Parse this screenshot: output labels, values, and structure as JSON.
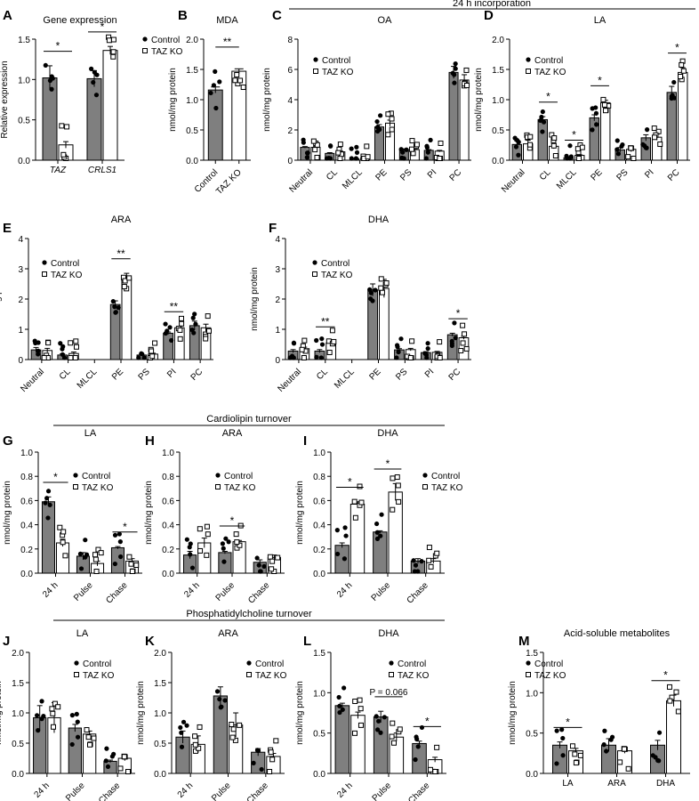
{
  "colors": {
    "control_fill": "#7f7f7f",
    "ko_fill": "#ffffff",
    "axis": "#000000"
  },
  "legend": {
    "control": "Control",
    "ko": "TAZ KO"
  },
  "section_titles": {
    "incorporation": "24 h incorporation",
    "cardiolipin": "Cardiolipin turnover",
    "phosphatidylcholine": "Phosphatidylcholine turnover"
  },
  "chart_data": [
    {
      "id": "A",
      "type": "bar",
      "title": "Gene expression",
      "ylabel": "Relative expression",
      "categories": [
        "TAZ",
        "CRLS1"
      ],
      "italic_categories": true,
      "ylim": [
        0,
        1.5
      ],
      "yticks": [
        "0.0",
        "0.5",
        "1.0",
        "1.5"
      ],
      "yticks_values": [
        0,
        0.5,
        1.0,
        1.5
      ],
      "series": [
        {
          "name": "Control",
          "values": [
            1.02,
            1.01
          ],
          "errors": [
            0.15,
            0.1
          ]
        },
        {
          "name": "TAZ KO",
          "values": [
            0.19,
            1.36
          ],
          "errors": [
            0.04,
            0.05
          ]
        }
      ],
      "significance": [
        {
          "category": "TAZ",
          "label": "*"
        },
        {
          "category": "CRLS1",
          "label": "*"
        }
      ],
      "legend": true
    },
    {
      "id": "B",
      "type": "bar",
      "title": "MDA",
      "ylabel": "nmol/mg protein",
      "categories": [
        "Control",
        "TAZ KO"
      ],
      "ylim": [
        0,
        2
      ],
      "yticks": [
        "0.0",
        "0.5",
        "1.0",
        "1.5",
        "2.0"
      ],
      "yticks_values": [
        0,
        0.5,
        1.0,
        1.5,
        2.0
      ],
      "single_series": true,
      "values": [
        1.16,
        1.47
      ],
      "errors": [
        0.05,
        0.04
      ],
      "significance": [
        {
          "label": "**"
        }
      ]
    },
    {
      "id": "C",
      "type": "bar",
      "title": "OA",
      "ylabel": "nmol/mg protein",
      "categories": [
        "Neutral",
        "CL",
        "MLCL",
        "PE",
        "PS",
        "PI",
        "PC"
      ],
      "ylim": [
        0,
        8
      ],
      "yticks": [
        "0",
        "2",
        "4",
        "6",
        "8"
      ],
      "yticks_values": [
        0,
        2,
        4,
        6,
        8
      ],
      "series": [
        {
          "name": "Control",
          "values": [
            0.85,
            0.45,
            0.1,
            2.2,
            0.7,
            0.65,
            5.8
          ],
          "errors": [
            0.05,
            0.05,
            0.02,
            0.15,
            0.05,
            0.05,
            0.4
          ]
        },
        {
          "name": "TAZ KO",
          "values": [
            0.85,
            0.55,
            0.15,
            2.45,
            0.7,
            0.6,
            5.3
          ],
          "errors": [
            0.05,
            0.05,
            0.02,
            0.2,
            0.05,
            0.05,
            0.35
          ]
        }
      ],
      "significance": [],
      "legend": true
    },
    {
      "id": "D",
      "type": "bar",
      "title": "LA",
      "ylabel": "nmol/mg protein",
      "categories": [
        "Neutral",
        "CL",
        "MLCL",
        "PE",
        "PS",
        "PI",
        "PC"
      ],
      "ylim": [
        0,
        2
      ],
      "yticks": [
        "0.0",
        "0.5",
        "1.0",
        "1.5",
        "2.0"
      ],
      "yticks_values": [
        0,
        0.5,
        1.0,
        1.5,
        2.0
      ],
      "series": [
        {
          "name": "Control",
          "values": [
            0.26,
            0.67,
            0.04,
            0.7,
            0.17,
            0.37,
            1.12
          ],
          "errors": [
            0.06,
            0.05,
            0.01,
            0.05,
            0.04,
            0.05,
            0.1
          ]
        },
        {
          "name": "TAZ KO",
          "values": [
            0.27,
            0.23,
            0.08,
            0.95,
            0.18,
            0.38,
            1.45
          ],
          "errors": [
            0.06,
            0.04,
            0.01,
            0.04,
            0.04,
            0.05,
            0.08
          ]
        }
      ],
      "significance": [
        {
          "category": "CL",
          "label": "*"
        },
        {
          "category": "MLCL",
          "label": "*"
        },
        {
          "category": "PE",
          "label": "*"
        },
        {
          "category": "PC",
          "label": "*"
        }
      ],
      "legend": true
    },
    {
      "id": "E",
      "type": "bar",
      "title": "ARA",
      "ylabel": "nmol/mg protein",
      "categories": [
        "Neutral",
        "CL",
        "MLCL",
        "PE",
        "PS",
        "PI",
        "PC"
      ],
      "ylim": [
        0,
        4
      ],
      "yticks": [
        "0",
        "1",
        "2",
        "3",
        "4"
      ],
      "yticks_values": [
        0,
        1,
        2,
        3,
        4
      ],
      "series": [
        {
          "name": "Control",
          "values": [
            0.32,
            0.15,
            0,
            1.82,
            0.15,
            0.87,
            1.12
          ],
          "errors": [
            0.08,
            0.04,
            0,
            0.12,
            0.03,
            0.04,
            0.15
          ]
        },
        {
          "name": "TAZ KO",
          "values": [
            0.3,
            0.2,
            0,
            2.7,
            0.18,
            1.05,
            1.05
          ],
          "errors": [
            0.07,
            0.05,
            0,
            0.15,
            0.03,
            0.05,
            0.12
          ]
        }
      ],
      "significance": [
        {
          "category": "PE",
          "label": "**"
        },
        {
          "category": "PI",
          "label": "**"
        }
      ],
      "legend": true
    },
    {
      "id": "F",
      "type": "bar",
      "title": "DHA",
      "ylabel": "nmol/mg protein",
      "categories": [
        "Neutral",
        "CL",
        "MLCL",
        "PE",
        "PS",
        "PI",
        "PC"
      ],
      "ylim": [
        0,
        4
      ],
      "yticks": [
        "0",
        "1",
        "2",
        "3",
        "4"
      ],
      "yticks_values": [
        0,
        1,
        2,
        3,
        4
      ],
      "series": [
        {
          "name": "Control",
          "values": [
            0.28,
            0.28,
            0,
            2.3,
            0.32,
            0.23,
            0.82
          ],
          "errors": [
            0.05,
            0.05,
            0,
            0.2,
            0.04,
            0.03,
            0.05
          ]
        },
        {
          "name": "TAZ KO",
          "values": [
            0.36,
            0.55,
            0,
            2.35,
            0.33,
            0.24,
            0.72
          ],
          "errors": [
            0.05,
            0.05,
            0,
            0.3,
            0.04,
            0.03,
            0.05
          ]
        }
      ],
      "significance": [
        {
          "category": "CL",
          "label": "**"
        },
        {
          "category": "PC",
          "label": "*"
        }
      ],
      "legend": true
    },
    {
      "id": "G",
      "type": "bar",
      "title": "LA",
      "ylabel": "nmol/mg protein",
      "categories": [
        "24 h",
        "Pulse",
        "Chase"
      ],
      "ylim": [
        0,
        1.0
      ],
      "yticks": [
        "0.0",
        "0.2",
        "0.4",
        "0.6",
        "0.8",
        "1.0"
      ],
      "yticks_values": [
        0,
        0.2,
        0.4,
        0.6,
        0.8,
        1.0
      ],
      "series": [
        {
          "name": "Control",
          "values": [
            0.59,
            0.14,
            0.21
          ],
          "errors": [
            0.04,
            0.03,
            0.01
          ]
        },
        {
          "name": "TAZ KO",
          "values": [
            0.25,
            0.08,
            0.1
          ],
          "errors": [
            0.03,
            0.02,
            0.02
          ]
        }
      ],
      "significance": [
        {
          "category": "24 h",
          "label": "*"
        },
        {
          "category": "Chase",
          "label": "*"
        }
      ],
      "legend": true
    },
    {
      "id": "H",
      "type": "bar",
      "title": "ARA",
      "ylabel": "nmol/mg protein",
      "categories": [
        "24 h",
        "Pulse",
        "Chase"
      ],
      "ylim": [
        0,
        1.0
      ],
      "yticks": [
        "0.0",
        "0.2",
        "0.4",
        "0.6",
        "0.8",
        "1.0"
      ],
      "yticks_values": [
        0,
        0.2,
        0.4,
        0.6,
        0.8,
        1.0
      ],
      "series": [
        {
          "name": "Control",
          "values": [
            0.15,
            0.17,
            0.09
          ],
          "errors": [
            0.03,
            0.01,
            0.02
          ]
        },
        {
          "name": "TAZ KO",
          "values": [
            0.25,
            0.26,
            0.13
          ],
          "errors": [
            0.04,
            0.01,
            0.02
          ]
        }
      ],
      "significance": [
        {
          "category": "Pulse",
          "label": "*"
        }
      ],
      "legend": true
    },
    {
      "id": "I",
      "type": "bar",
      "title": "DHA",
      "ylabel": "nmol/mg protein",
      "categories": [
        "24 h",
        "Pulse",
        "Chase"
      ],
      "ylim": [
        0,
        1.0
      ],
      "yticks": [
        "0.0",
        "0.2",
        "0.4",
        "0.6",
        "0.8",
        "1.0"
      ],
      "yticks_values": [
        0,
        0.2,
        0.4,
        0.6,
        0.8,
        1.0
      ],
      "series": [
        {
          "name": "Control",
          "values": [
            0.23,
            0.34,
            0.1
          ],
          "errors": [
            0.02,
            0.01,
            0.02
          ]
        },
        {
          "name": "TAZ KO",
          "values": [
            0.57,
            0.67,
            0.1
          ],
          "errors": [
            0.02,
            0.07,
            0.02
          ]
        }
      ],
      "significance": [
        {
          "category": "24 h",
          "label": "*"
        },
        {
          "category": "Pulse",
          "label": "*"
        }
      ],
      "legend": true
    },
    {
      "id": "J",
      "type": "bar",
      "title": "LA",
      "ylabel": "nmol/mg protein",
      "categories": [
        "24 h",
        "Pulse",
        "Chase"
      ],
      "ylim": [
        0,
        2.0
      ],
      "yticks": [
        "0.0",
        "0.5",
        "1.0",
        "1.5",
        "2.0"
      ],
      "yticks_values": [
        0,
        0.5,
        1.0,
        1.5,
        2.0
      ],
      "series": [
        {
          "name": "Control",
          "values": [
            0.92,
            0.75,
            0.2
          ],
          "errors": [
            0.2,
            0.06,
            0.02
          ]
        },
        {
          "name": "TAZ KO",
          "values": [
            0.92,
            0.65,
            0.25
          ],
          "errors": [
            0.25,
            0.05,
            0.04
          ]
        }
      ],
      "significance": [],
      "legend": true
    },
    {
      "id": "K",
      "type": "bar",
      "title": "ARA",
      "ylabel": "nmol/mg protein",
      "categories": [
        "24 h",
        "Pulse",
        "Chase"
      ],
      "ylim": [
        0,
        2.0
      ],
      "yticks": [
        "0.0",
        "0.5",
        "1.0",
        "1.5",
        "2.0"
      ],
      "yticks_values": [
        0,
        0.5,
        1.0,
        1.5,
        2.0
      ],
      "series": [
        {
          "name": "Control",
          "values": [
            0.6,
            1.28,
            0.35
          ],
          "errors": [
            0.1,
            0.15,
            0.06
          ]
        },
        {
          "name": "TAZ KO",
          "values": [
            0.48,
            0.8,
            0.28
          ],
          "errors": [
            0.14,
            0.2,
            0.05
          ]
        }
      ],
      "significance": [],
      "legend": true
    },
    {
      "id": "L",
      "type": "bar",
      "title": "DHA",
      "ylabel": "nmol/mg protein",
      "categories": [
        "24 h",
        "Pulse",
        "Chase"
      ],
      "ylim": [
        0,
        1.5
      ],
      "yticks": [
        "0.0",
        "0.5",
        "1.0",
        "1.5"
      ],
      "yticks_values": [
        0,
        0.5,
        1.0,
        1.5
      ],
      "series": [
        {
          "name": "Control",
          "values": [
            0.84,
            0.7,
            0.37
          ],
          "errors": [
            0.03,
            0.07,
            0.03
          ]
        },
        {
          "name": "TAZ KO",
          "values": [
            0.72,
            0.45,
            0.17
          ],
          "errors": [
            0.04,
            0.05,
            0.03
          ]
        }
      ],
      "significance": [
        {
          "category": "Pulse",
          "label": "P = 0.066"
        },
        {
          "category": "Chase",
          "label": "*"
        }
      ],
      "legend": true
    },
    {
      "id": "M",
      "type": "bar",
      "title": "Acid-soluble metabolites",
      "ylabel": "nmol/mg protein",
      "categories": [
        "LA",
        "ARA",
        "DHA"
      ],
      "ylim": [
        0,
        1.5
      ],
      "yticks": [
        "0.0",
        "0.5",
        "1.0",
        "1.5"
      ],
      "yticks_values": [
        0,
        0.5,
        1.0,
        1.5
      ],
      "series": [
        {
          "name": "Control",
          "values": [
            0.35,
            0.35,
            0.35
          ],
          "errors": [
            0.04,
            0.08,
            0.06
          ]
        },
        {
          "name": "TAZ KO",
          "values": [
            0.28,
            0.28,
            0.9
          ],
          "errors": [
            0.03,
            0.03,
            0.07
          ]
        }
      ],
      "significance": [
        {
          "category": "LA",
          "label": "*"
        },
        {
          "category": "DHA",
          "label": "*"
        }
      ],
      "legend": true
    }
  ]
}
